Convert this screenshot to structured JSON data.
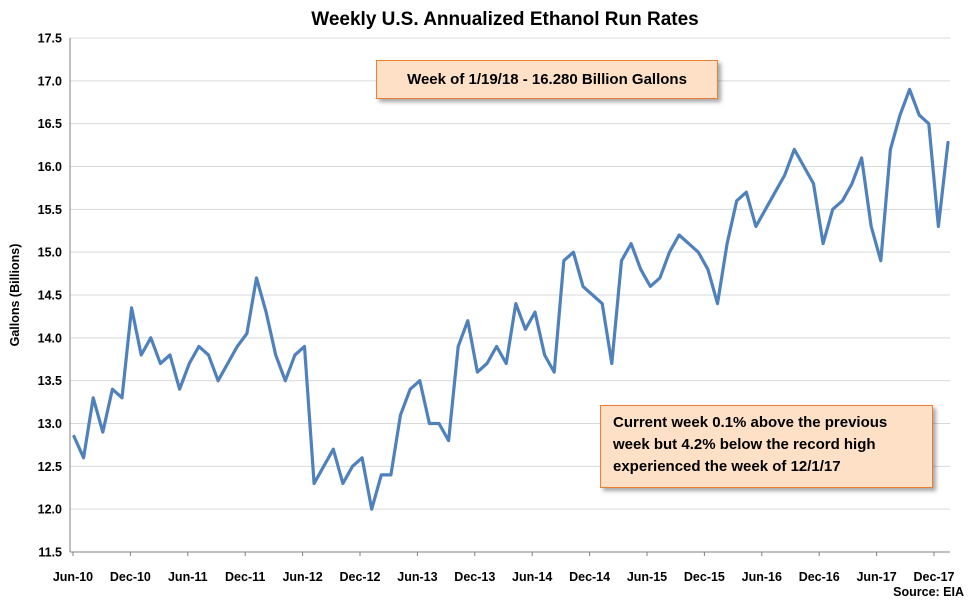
{
  "chart_data": {
    "type": "line",
    "title": "Weekly U.S. Annualized Ethanol Run Rates",
    "ylabel": "Gallons (Billions)",
    "xlabel": "",
    "ylim": [
      11.5,
      17.5
    ],
    "yticks": [
      "11.5",
      "12.0",
      "12.5",
      "13.0",
      "13.5",
      "14.0",
      "14.5",
      "15.0",
      "15.5",
      "16.0",
      "16.5",
      "17.0",
      "17.5"
    ],
    "xticks": [
      "Jun-10",
      "Dec-10",
      "Jun-11",
      "Dec-11",
      "Jun-12",
      "Dec-12",
      "Jun-13",
      "Dec-13",
      "Jun-14",
      "Dec-14",
      "Jun-15",
      "Dec-15",
      "Jun-16",
      "Dec-16",
      "Jun-17",
      "Dec-17"
    ],
    "grid": "horizontal",
    "line_color": "#4f81bd",
    "x": [
      "Jun-10",
      "Jul-10",
      "Aug-10",
      "Sep-10",
      "Oct-10",
      "Nov-10",
      "Dec-10",
      "Jan-11",
      "Feb-11",
      "Mar-11",
      "Apr-11",
      "May-11",
      "Jun-11",
      "Jul-11",
      "Aug-11",
      "Sep-11",
      "Oct-11",
      "Nov-11",
      "Dec-11",
      "Jan-12",
      "Feb-12",
      "Mar-12",
      "Apr-12",
      "May-12",
      "Jun-12",
      "Jul-12",
      "Aug-12",
      "Sep-12",
      "Oct-12",
      "Nov-12",
      "Dec-12",
      "Jan-13",
      "Feb-13",
      "Mar-13",
      "Apr-13",
      "May-13",
      "Jun-13",
      "Jul-13",
      "Aug-13",
      "Sep-13",
      "Oct-13",
      "Nov-13",
      "Dec-13",
      "Jan-14",
      "Feb-14",
      "Mar-14",
      "Apr-14",
      "May-14",
      "Jun-14",
      "Jul-14",
      "Aug-14",
      "Sep-14",
      "Oct-14",
      "Nov-14",
      "Dec-14",
      "Jan-15",
      "Feb-15",
      "Mar-15",
      "Apr-15",
      "May-15",
      "Jun-15",
      "Jul-15",
      "Aug-15",
      "Sep-15",
      "Oct-15",
      "Nov-15",
      "Dec-15",
      "Jan-16",
      "Feb-16",
      "Mar-16",
      "Apr-16",
      "May-16",
      "Jun-16",
      "Jul-16",
      "Aug-16",
      "Sep-16",
      "Oct-16",
      "Nov-16",
      "Dec-16",
      "Jan-17",
      "Feb-17",
      "Mar-17",
      "Apr-17",
      "May-17",
      "Jun-17",
      "Jul-17",
      "Aug-17",
      "Sep-17",
      "Oct-17",
      "Nov-17",
      "Dec-17",
      "Jan-18"
    ],
    "values": [
      12.85,
      12.6,
      13.3,
      12.9,
      13.4,
      13.3,
      14.35,
      13.8,
      14.0,
      13.7,
      13.8,
      13.4,
      13.7,
      13.9,
      13.8,
      13.5,
      13.7,
      13.9,
      14.05,
      14.7,
      14.3,
      13.8,
      13.5,
      13.8,
      13.9,
      12.3,
      12.5,
      12.7,
      12.3,
      12.5,
      12.6,
      12.0,
      12.4,
      12.4,
      13.1,
      13.4,
      13.5,
      13.0,
      13.0,
      12.8,
      13.9,
      14.2,
      13.6,
      13.7,
      13.9,
      13.7,
      14.4,
      14.1,
      14.3,
      13.8,
      13.6,
      14.9,
      15.0,
      14.6,
      14.5,
      14.4,
      13.7,
      14.9,
      15.1,
      14.8,
      14.6,
      14.7,
      15.0,
      15.2,
      15.1,
      15.0,
      14.8,
      14.4,
      15.1,
      15.6,
      15.7,
      15.3,
      15.5,
      15.7,
      15.9,
      16.2,
      16.0,
      15.8,
      15.1,
      15.5,
      15.6,
      15.8,
      16.1,
      15.3,
      14.9,
      16.2,
      16.6,
      16.9,
      16.6,
      16.5,
      15.3,
      16.28
    ]
  },
  "callouts": {
    "top": "Week of 1/19/18 - 16.280 Billion Gallons",
    "bottom": "Current week 0.1% above the previous week but 4.2% below the record high experienced the week of 12/1/17"
  },
  "source": "Source: EIA"
}
